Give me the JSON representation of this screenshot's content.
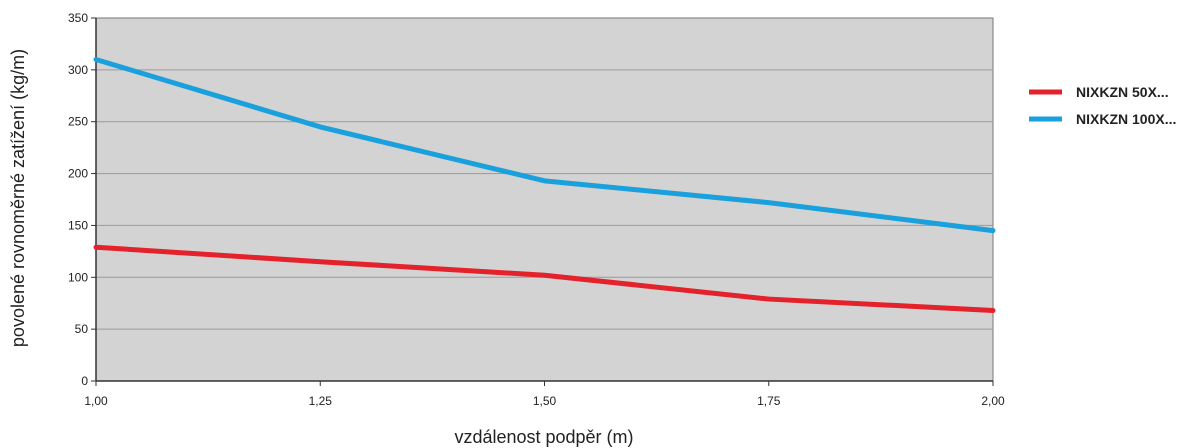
{
  "chart_data": {
    "type": "line",
    "x": [
      "1,00",
      "1,25",
      "1,50",
      "1,75",
      "2,00"
    ],
    "xlabel": "vzdálenost podpěr (m)",
    "ylabel": "povolené rovnoměrné zatížení (kg/m)",
    "ylim": [
      0,
      350
    ],
    "yticks": [
      "0",
      "50",
      "100",
      "150",
      "200",
      "250",
      "300",
      "350"
    ],
    "grid": true,
    "legend_position": "right",
    "background": "#d3d3d3",
    "series": [
      {
        "name": "NIXKZN 50X...",
        "color": "#e3222b",
        "values": [
          129,
          115,
          102,
          79,
          68
        ]
      },
      {
        "name": "NIXKZN 100X...",
        "color": "#1aa0dc",
        "values": [
          310,
          245,
          193,
          172,
          145
        ]
      }
    ]
  }
}
